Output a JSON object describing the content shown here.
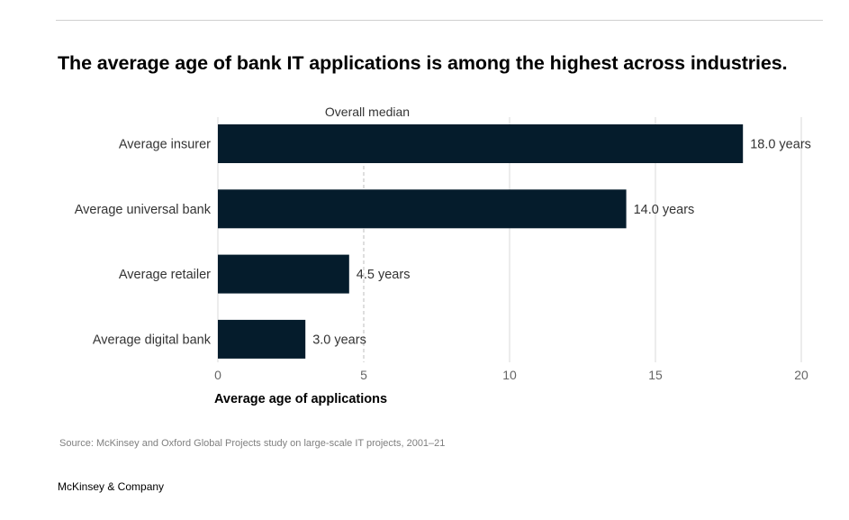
{
  "title": "The average age of bank IT applications is among the highest across industries.",
  "source": "Source: McKinsey and Oxford Global Projects study on large-scale IT projects, 2001–21",
  "brand": "McKinsey & Company",
  "colors": {
    "bar": "#051c2c",
    "grid": "#d9d9d9",
    "median_line": "#bdbdbd",
    "label_text": "#333333",
    "tick_text": "#666666"
  },
  "chart_data": {
    "type": "bar",
    "orientation": "horizontal",
    "categories": [
      "Average insurer",
      "Average universal bank",
      "Average retailer",
      "Average digital bank"
    ],
    "values": [
      18.0,
      14.0,
      4.5,
      3.0
    ],
    "data_labels": [
      "18.0 years",
      "14.0 years",
      "4.5 years",
      "3.0 years"
    ],
    "xlabel": "Average age of applications",
    "xlim": [
      0,
      20
    ],
    "xticks": [
      0,
      5,
      10,
      15,
      20
    ],
    "grid": true,
    "reference_line": {
      "label": "Overall median",
      "value": 5
    }
  }
}
